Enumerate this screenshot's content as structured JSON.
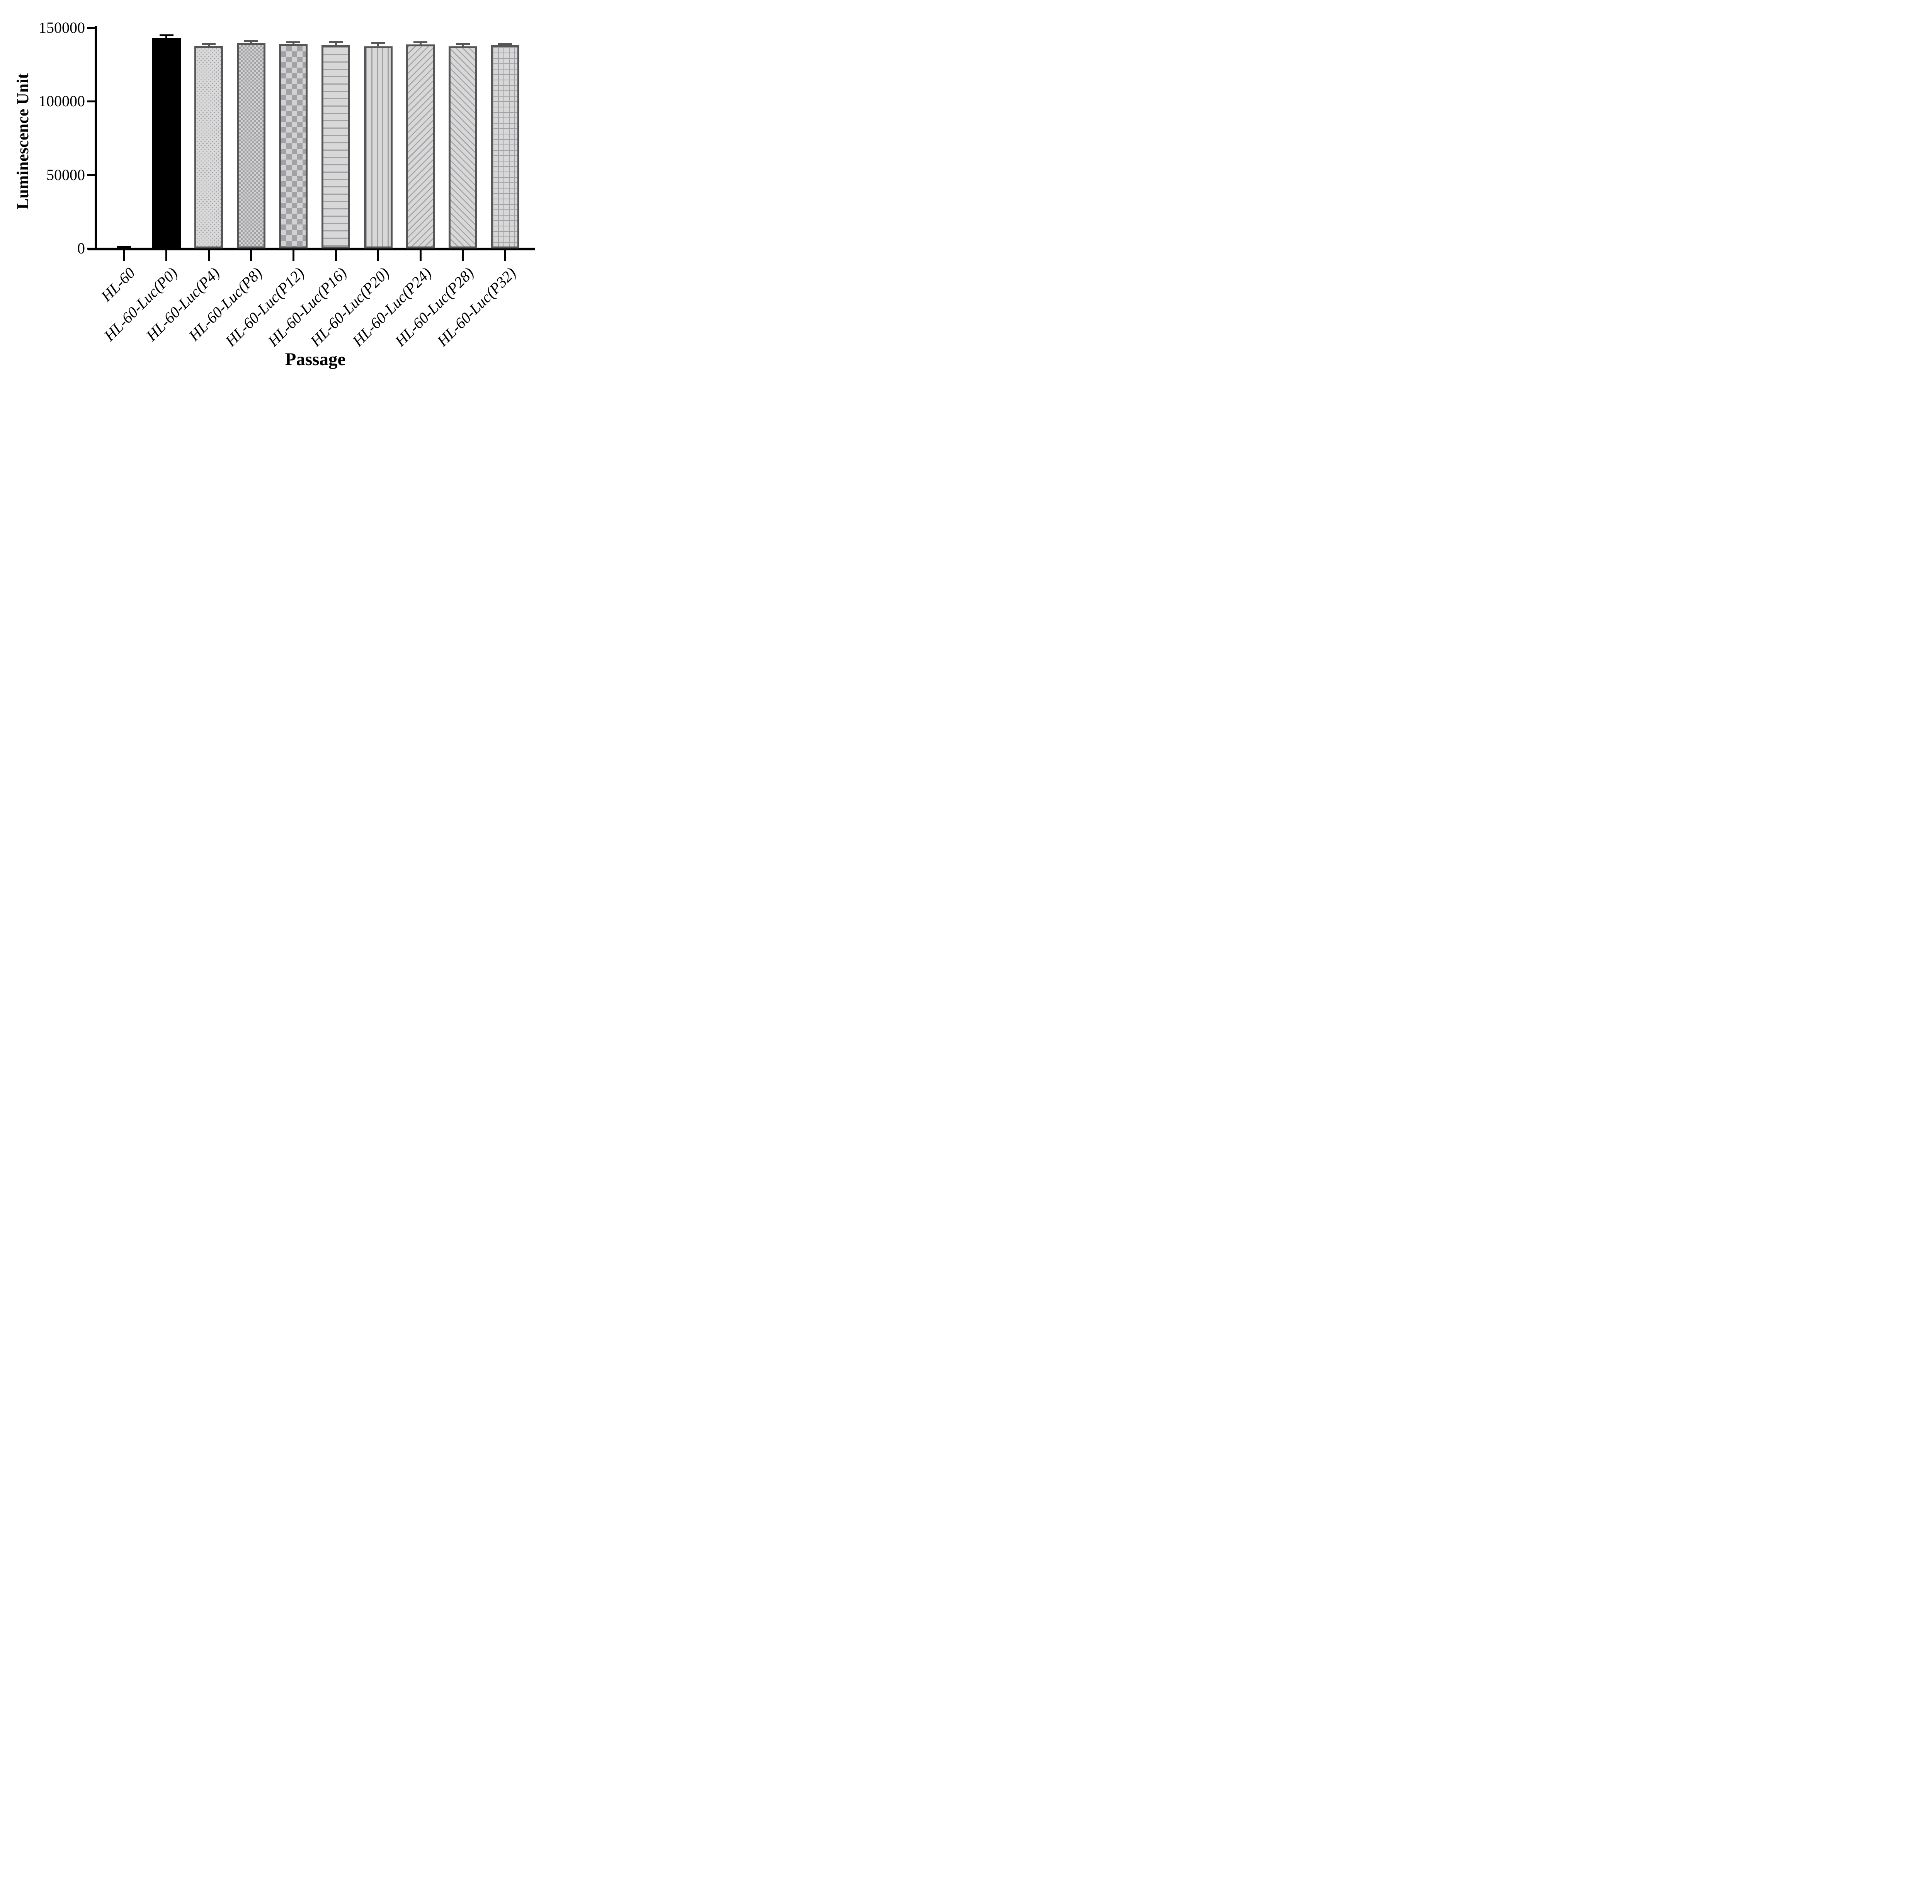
{
  "chart_data": {
    "type": "bar",
    "title": "",
    "xlabel": "Passage",
    "ylabel": "Luminescence Unit",
    "categories": [
      "HL-60",
      "HL-60-Luc(P0)",
      "HL-60-Luc(P4)",
      "HL-60-Luc(P8)",
      "HL-60-Luc(P12)",
      "HL-60-Luc(P16)",
      "HL-60-Luc(P20)",
      "HL-60-Luc(P24)",
      "HL-60-Luc(P28)",
      "HL-60-Luc(P32)"
    ],
    "values": [
      500,
      143100,
      137700,
      139800,
      138900,
      138500,
      137500,
      138700,
      137500,
      138100
    ],
    "errors_upper": [
      300,
      1800,
      1500,
      1400,
      1200,
      1900,
      2000,
      1500,
      1700,
      900
    ],
    "bar_styles": [
      "solid-black",
      "solid-black",
      "dots",
      "checker-small",
      "checker-large",
      "horizontal-lines",
      "vertical-lines",
      "diagonal-up",
      "diagonal-down",
      "grid"
    ],
    "ylim": [
      0,
      150000
    ],
    "yticks": [
      0,
      50000,
      100000,
      150000
    ],
    "ytick_labels": [
      "0",
      "50000",
      "100000",
      "150000"
    ],
    "grid": false,
    "legend_position": "none",
    "error_bar_direction": "upper-only"
  },
  "colors": {
    "background": "#ffffff",
    "axis": "#000000",
    "text": "#000000",
    "bar_black": "#000000",
    "bar_fill": "#d8d8d8",
    "bar_pattern": "#a2a2a6",
    "bar_border": "#565659"
  }
}
